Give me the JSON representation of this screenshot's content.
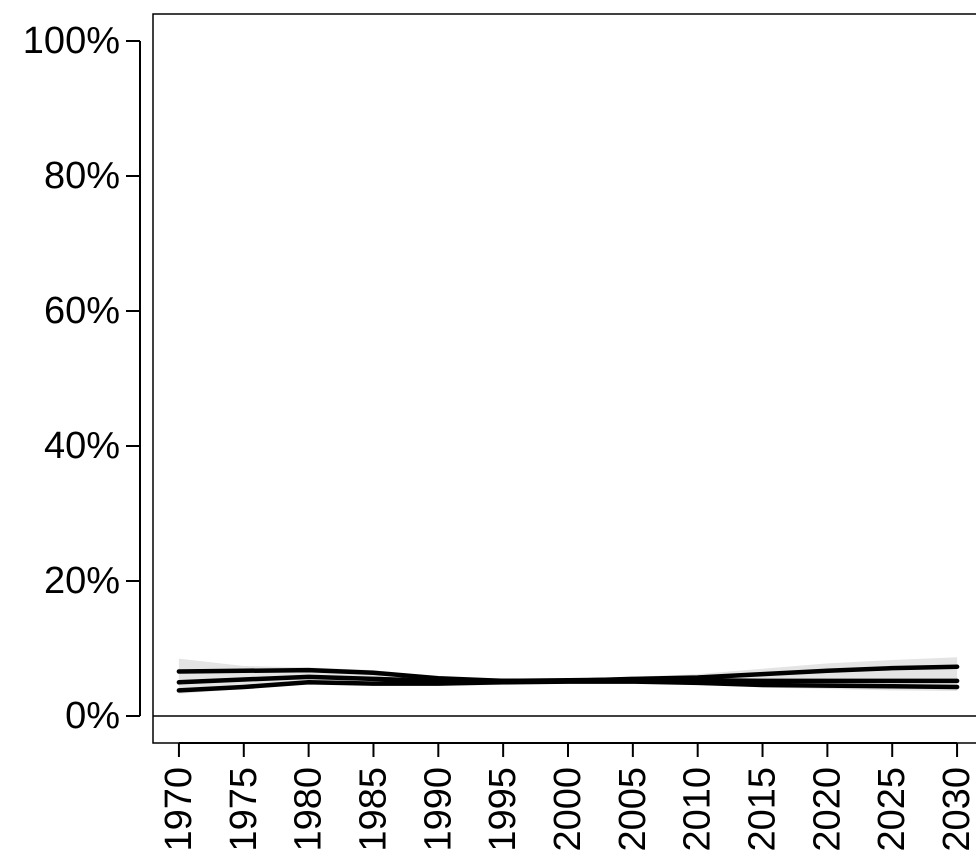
{
  "chart_data": {
    "type": "line",
    "title": "",
    "xlabel": "",
    "ylabel": "",
    "xlim": [
      1968,
      2032
    ],
    "ylim": [
      -4,
      104
    ],
    "x_ticks": [
      1970,
      1975,
      1980,
      1985,
      1990,
      1995,
      2000,
      2005,
      2010,
      2015,
      2020,
      2025,
      2030
    ],
    "y_ticks": [
      {
        "value": 0,
        "label": "0%"
      },
      {
        "value": 20,
        "label": "20%"
      },
      {
        "value": 40,
        "label": "40%"
      },
      {
        "value": 60,
        "label": "60%"
      },
      {
        "value": 80,
        "label": "80%"
      },
      {
        "value": 100,
        "label": "100%"
      }
    ],
    "reference_line": 0,
    "grid": false,
    "legend": "none",
    "x": [
      1970,
      1975,
      1980,
      1985,
      1990,
      1995,
      2000,
      2005,
      2010,
      2015,
      2020,
      2025,
      2030
    ],
    "band": {
      "lower": [
        3.3,
        4.0,
        4.8,
        4.6,
        4.5,
        4.6,
        4.8,
        5.0,
        4.8,
        4.2,
        4.0,
        3.8,
        3.7
      ],
      "upper": [
        8.5,
        7.4,
        7.2,
        6.8,
        5.8,
        5.6,
        5.5,
        5.8,
        6.2,
        7.0,
        7.8,
        8.3,
        8.7
      ]
    },
    "series": [
      {
        "values": [
          6.6,
          6.7,
          6.8,
          6.4,
          5.6,
          5.2,
          5.2,
          5.5,
          5.7,
          6.2,
          6.7,
          7.1,
          7.3
        ]
      },
      {
        "values": [
          5.0,
          5.4,
          5.8,
          5.5,
          5.2,
          5.2,
          5.3,
          5.4,
          5.3,
          5.2,
          5.2,
          5.2,
          5.2
        ]
      },
      {
        "values": [
          3.8,
          4.3,
          5.0,
          4.8,
          4.8,
          5.0,
          5.1,
          5.1,
          4.9,
          4.6,
          4.5,
          4.4,
          4.3
        ]
      }
    ]
  }
}
